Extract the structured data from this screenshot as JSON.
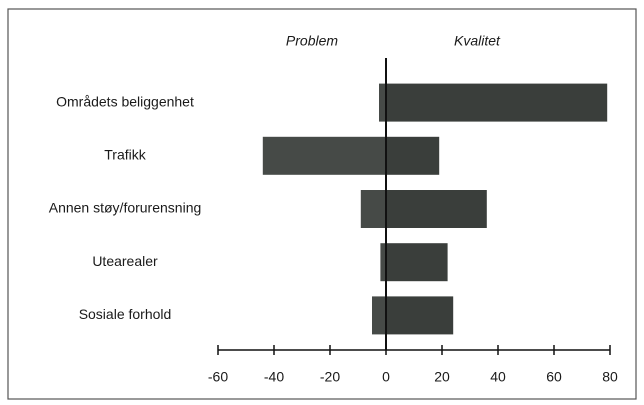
{
  "chart_data": {
    "type": "diverging_bar",
    "categories": [
      "Områdets beliggenhet",
      "Trafikk",
      "Annen støy/forurensning",
      "Utearealer",
      "Sosiale forhold"
    ],
    "series": [
      {
        "name": "Problem",
        "color": "#464a47",
        "values": [
          -2.5,
          -44,
          -9,
          -2,
          -5
        ]
      },
      {
        "name": "Kvalitet",
        "color": "#3a3e3b",
        "values": [
          79,
          19,
          36,
          22,
          24
        ]
      }
    ],
    "xlim": [
      -60,
      80
    ],
    "xticks": [
      -60,
      -40,
      -20,
      0,
      20,
      40,
      60,
      80
    ]
  }
}
